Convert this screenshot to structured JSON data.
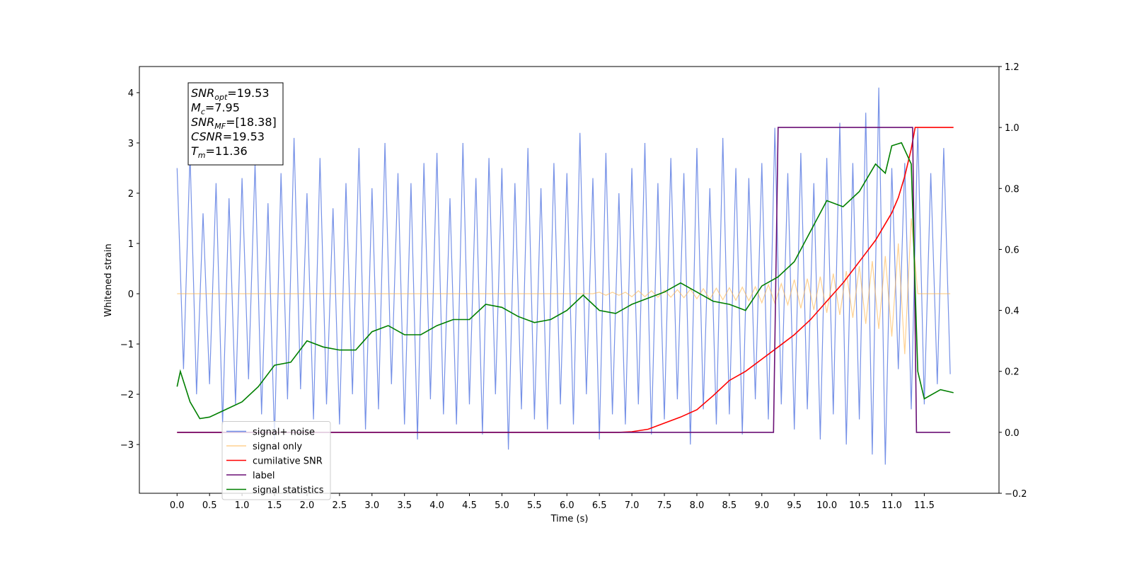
{
  "chart_data": {
    "type": "line",
    "xlabel": "Time (s)",
    "ylabel": "Whitened strain",
    "xlim": [
      -0.58,
      12.65
    ],
    "ylim": [
      -3.97,
      4.52
    ],
    "y2lim": [
      -0.2,
      1.2
    ],
    "xticks": [
      {
        "value": 0,
        "label": "0.0"
      },
      0.5,
      {
        "value": 1,
        "label": "1.0"
      },
      1.5,
      {
        "value": 2,
        "label": "2.0"
      },
      2.5,
      {
        "value": 3,
        "label": "3.0"
      },
      3.5,
      {
        "value": 4,
        "label": "4.0"
      },
      4.5,
      {
        "value": 5,
        "label": "5.0"
      },
      5.5,
      {
        "value": 6,
        "label": "6.0"
      },
      6.5,
      {
        "value": 7,
        "label": "7.0"
      },
      7.5,
      {
        "value": 8,
        "label": "8.0"
      },
      8.5,
      {
        "value": 9,
        "label": "9.0"
      },
      9.5,
      {
        "value": 10,
        "label": "10.0"
      },
      10.5,
      {
        "value": 11,
        "label": "11.0"
      },
      11.5
    ],
    "yticks": [
      {
        "value": -3,
        "label": "−3"
      },
      {
        "value": -2,
        "label": "−2"
      },
      {
        "value": -1,
        "label": "−1"
      },
      0,
      1,
      2,
      3,
      4
    ],
    "y2ticks": [
      {
        "value": -0.2,
        "label": "−0.2"
      },
      {
        "value": 0,
        "label": "0.0"
      },
      0.2,
      0.4,
      0.6,
      0.8,
      {
        "value": 1,
        "label": "1.0"
      },
      1.2
    ],
    "legend": "lower left",
    "annotation": [
      {
        "var": "SNR",
        "sub": "opt",
        "text": "=19.53"
      },
      {
        "var": "M",
        "sub": "c",
        "text": "=7.95"
      },
      {
        "var": "SNR",
        "sub": "MF",
        "text": "=[18.38]"
      },
      {
        "var": "CSNR",
        "sub": "",
        "text": "=19.53"
      },
      {
        "var": "T",
        "sub": "m",
        "text": "=11.36"
      }
    ],
    "x": [
      0,
      0.1,
      0.2,
      0.3,
      0.4,
      0.5,
      0.6,
      0.7,
      0.8,
      0.9,
      1,
      1.1,
      1.2,
      1.3,
      1.4,
      1.5,
      1.6,
      1.7,
      1.8,
      1.9,
      2,
      2.1,
      2.2,
      2.3,
      2.4,
      2.5,
      2.6,
      2.7,
      2.8,
      2.9,
      3,
      3.1,
      3.2,
      3.3,
      3.4,
      3.5,
      3.6,
      3.7,
      3.8,
      3.9,
      4,
      4.1,
      4.2,
      4.3,
      4.4,
      4.5,
      4.6,
      4.7,
      4.8,
      4.9,
      5,
      5.1,
      5.2,
      5.3,
      5.4,
      5.5,
      5.6,
      5.7,
      5.8,
      5.9,
      6,
      6.1,
      6.2,
      6.3,
      6.4,
      6.5,
      6.6,
      6.7,
      6.8,
      6.9,
      7,
      7.1,
      7.2,
      7.3,
      7.4,
      7.5,
      7.6,
      7.7,
      7.8,
      7.9,
      8,
      8.1,
      8.2,
      8.3,
      8.4,
      8.5,
      8.6,
      8.7,
      8.8,
      8.9,
      9,
      9.1,
      9.2,
      9.3,
      9.4,
      9.5,
      9.6,
      9.7,
      9.8,
      9.9,
      10,
      10.1,
      10.2,
      10.3,
      10.4,
      10.5,
      10.6,
      10.7,
      10.8,
      10.9,
      11,
      11.1,
      11.2,
      11.3,
      11.4,
      11.5,
      11.6,
      11.7,
      11.8,
      11.9
    ],
    "series": [
      {
        "name": "signal+ noise",
        "color": "#6f8be6",
        "values": [
          2.5,
          -1.5,
          2.8,
          -2.0,
          1.6,
          -1.8,
          2.2,
          -2.6,
          1.9,
          -2.2,
          2.3,
          -1.7,
          2.6,
          -2.4,
          1.8,
          -2.9,
          2.4,
          -2.1,
          3.1,
          -1.9,
          2.0,
          -2.5,
          2.7,
          -2.2,
          1.7,
          -2.6,
          2.2,
          -2.0,
          2.9,
          -2.7,
          2.1,
          -2.3,
          3.0,
          -1.8,
          2.4,
          -2.6,
          2.2,
          -2.9,
          2.6,
          -2.1,
          2.8,
          -2.4,
          1.9,
          -2.6,
          3.0,
          -2.2,
          2.3,
          -2.8,
          2.7,
          -2.0,
          2.5,
          -3.1,
          2.2,
          -2.3,
          2.9,
          -2.5,
          2.1,
          -2.7,
          2.6,
          -2.2,
          2.4,
          -2.6,
          3.2,
          -2.0,
          2.3,
          -2.9,
          2.8,
          -2.4,
          2.0,
          -2.6,
          2.5,
          -2.2,
          3.0,
          -2.8,
          2.2,
          -2.5,
          2.7,
          -2.1,
          2.4,
          -3.0,
          2.9,
          -2.3,
          2.1,
          -2.6,
          3.1,
          -2.4,
          2.5,
          -2.8,
          2.3,
          -2.1,
          2.6,
          -2.5,
          3.3,
          -2.2,
          2.4,
          -2.7,
          2.8,
          -2.3,
          2.2,
          -2.9,
          2.7,
          -2.4,
          3.4,
          -3.0,
          2.6,
          -2.5,
          3.6,
          -3.2,
          4.1,
          -3.4,
          2.5,
          -1.5,
          2.6,
          -2.3,
          3.3,
          -2.2,
          2.4,
          -1.8,
          2.9,
          -1.6
        ]
      },
      {
        "name": "signal only",
        "color": "#ffb347",
        "values": [
          0,
          0,
          0,
          0,
          0,
          0,
          0,
          0,
          0,
          0,
          0,
          0,
          0,
          0,
          0,
          0,
          0,
          0,
          0,
          0,
          0,
          0,
          0,
          0,
          0,
          0,
          0,
          0,
          0,
          0,
          0,
          0,
          0,
          0,
          0,
          0,
          0,
          0,
          0,
          0,
          0,
          0,
          0,
          0,
          0,
          0,
          0,
          0,
          0,
          0,
          0,
          0,
          0,
          0,
          0,
          0,
          0,
          0,
          0,
          0,
          0,
          0,
          0,
          0,
          0,
          0.03,
          -0.03,
          0.03,
          -0.03,
          0.03,
          -0.06,
          0.06,
          -0.06,
          0.06,
          -0.07,
          0.07,
          -0.07,
          0.08,
          -0.08,
          0.09,
          -0.1,
          0.1,
          -0.11,
          0.11,
          -0.12,
          0.12,
          -0.13,
          0.13,
          -0.14,
          0.14,
          -0.18,
          0.18,
          -0.19,
          0.2,
          -0.22,
          0.28,
          -0.29,
          0.3,
          -0.32,
          0.34,
          -0.38,
          0.4,
          -0.42,
          0.45,
          -0.48,
          0.55,
          -0.6,
          0.65,
          -0.7,
          0.75,
          -0.85,
          1.0,
          -1.2,
          1.5,
          0,
          0,
          0,
          0,
          0,
          0
        ]
      },
      {
        "name": "cumilative SNR",
        "color": "#ff0000",
        "axis": "y2",
        "x": [
          0,
          6.8,
          7.0,
          7.25,
          7.5,
          7.75,
          8.0,
          8.25,
          8.5,
          8.75,
          9.0,
          9.25,
          9.5,
          9.75,
          10.0,
          10.25,
          10.5,
          10.75,
          11.0,
          11.1,
          11.2,
          11.3,
          11.36,
          11.95
        ],
        "values": [
          0,
          0,
          0.002,
          0.01,
          0.03,
          0.05,
          0.074,
          0.12,
          0.17,
          0.2,
          0.24,
          0.28,
          0.32,
          0.37,
          0.43,
          0.49,
          0.56,
          0.63,
          0.72,
          0.77,
          0.84,
          0.93,
          1.0,
          1.0
        ]
      },
      {
        "name": "label",
        "color": "#6a0f75",
        "axis": "y2",
        "x": [
          0,
          9.18,
          9.25,
          11.32,
          11.38,
          11.9
        ],
        "values": [
          0,
          0,
          1,
          1,
          0,
          0
        ]
      },
      {
        "name": "signal statistics",
        "color": "#007f00",
        "axis": "y2",
        "x": [
          0,
          0.05,
          0.2,
          0.35,
          0.5,
          0.75,
          1.0,
          1.25,
          1.5,
          1.75,
          2.0,
          2.25,
          2.5,
          2.75,
          3.0,
          3.25,
          3.5,
          3.75,
          4.0,
          4.25,
          4.5,
          4.75,
          5.0,
          5.25,
          5.5,
          5.75,
          6.0,
          6.25,
          6.5,
          6.75,
          7.0,
          7.25,
          7.5,
          7.75,
          8.0,
          8.25,
          8.5,
          8.75,
          9.0,
          9.25,
          9.5,
          9.75,
          10.0,
          10.25,
          10.5,
          10.75,
          10.9,
          11.0,
          11.15,
          11.3,
          11.4,
          11.5,
          11.75,
          11.95
        ],
        "values": [
          0.15,
          0.2,
          0.1,
          0.045,
          0.05,
          0.075,
          0.1,
          0.15,
          0.22,
          0.23,
          0.3,
          0.28,
          0.27,
          0.27,
          0.33,
          0.35,
          0.32,
          0.32,
          0.35,
          0.37,
          0.37,
          0.42,
          0.41,
          0.38,
          0.36,
          0.37,
          0.4,
          0.45,
          0.4,
          0.39,
          0.42,
          0.44,
          0.46,
          0.49,
          0.46,
          0.43,
          0.42,
          0.4,
          0.48,
          0.51,
          0.56,
          0.66,
          0.76,
          0.74,
          0.79,
          0.88,
          0.85,
          0.94,
          0.95,
          0.88,
          0.2,
          0.11,
          0.14,
          0.13
        ]
      }
    ]
  }
}
